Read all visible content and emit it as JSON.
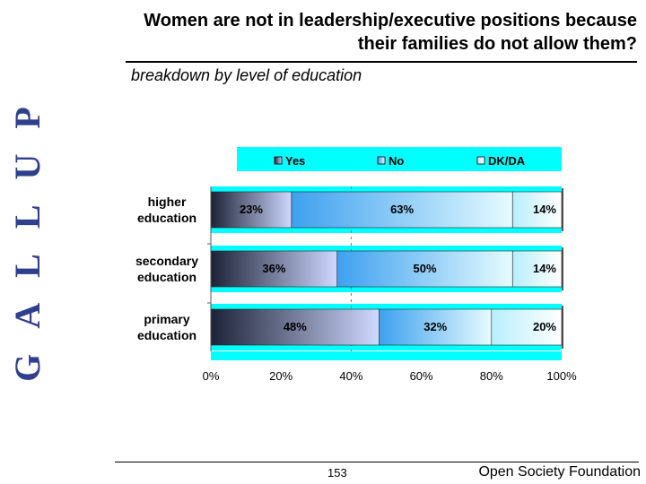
{
  "brand": {
    "side_label": "GALLUP",
    "color": "#2f3f8c"
  },
  "header": {
    "title_line1": "Women are not in leadership/executive positions because",
    "title_line2": "their families do not allow them?",
    "subtitle": "breakdown by level of education"
  },
  "footer": {
    "page_number": "153",
    "organization": "Open Society Foundation"
  },
  "chart_data": {
    "type": "bar",
    "orientation": "horizontal",
    "stacked": true,
    "background_color": "#00ffff",
    "categories": [
      {
        "line1": "higher",
        "line2": "education"
      },
      {
        "line1": "secondary",
        "line2": "education"
      },
      {
        "line1": "primary",
        "line2": "education"
      }
    ],
    "series": [
      {
        "name": "Yes",
        "values": [
          23,
          36,
          48
        ],
        "labels": [
          "23%",
          "36%",
          "48%"
        ],
        "color_light": "#cfd8ff",
        "color_dark": "#1c2236"
      },
      {
        "name": "No",
        "values": [
          63,
          50,
          32
        ],
        "labels": [
          "63%",
          "50%",
          "32%"
        ],
        "color_light": "#e6fbff",
        "color_dark": "#3ea0ef"
      },
      {
        "name": "DK/DA",
        "values": [
          14,
          14,
          20
        ],
        "labels": [
          "14%",
          "14%",
          "20%"
        ],
        "color_light": "#ffffff",
        "color_dark": "#b8eeff"
      }
    ],
    "xlim": [
      0,
      100
    ],
    "xticks": [
      {
        "value": 0,
        "label": "0%"
      },
      {
        "value": 20,
        "label": "20%"
      },
      {
        "value": 40,
        "label": "40%"
      },
      {
        "value": 60,
        "label": "60%"
      },
      {
        "value": 80,
        "label": "80%"
      },
      {
        "value": 100,
        "label": "100%"
      }
    ],
    "legend_position": "top",
    "grid": "dashed vertical at 40%"
  }
}
